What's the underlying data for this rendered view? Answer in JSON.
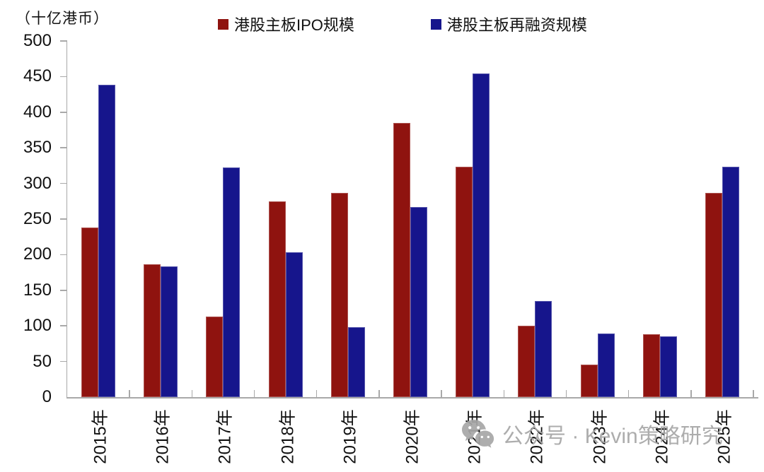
{
  "unit_label": "（十亿港币）",
  "legend": [
    {
      "label": "港股主板IPO规模",
      "color": "#8F130F"
    },
    {
      "label": "港股主板再融资规模",
      "color": "#16158C"
    }
  ],
  "watermark": {
    "icon": "wechat-icon",
    "text": "公众号 · Kevin策略研究"
  },
  "chart_data": {
    "type": "bar",
    "title": "",
    "ylabel": "（十亿港币）",
    "xlabel": "",
    "ylim": [
      0,
      500
    ],
    "ytick_step": 50,
    "grid": false,
    "legend_position": "top",
    "categories": [
      "2015年",
      "2016年",
      "2017年",
      "2018年",
      "2019年",
      "2020年",
      "2021年",
      "2022年",
      "2023年",
      "2024年",
      "2025年"
    ],
    "series": [
      {
        "name": "港股主板IPO规模",
        "color": "#8F130F",
        "values": [
          238,
          187,
          113,
          275,
          287,
          385,
          323,
          100,
          46,
          88,
          287
        ]
      },
      {
        "name": "港股主板再融资规模",
        "color": "#16158C",
        "values": [
          438,
          184,
          322,
          203,
          98,
          267,
          454,
          135,
          89,
          85,
          323
        ]
      }
    ]
  }
}
